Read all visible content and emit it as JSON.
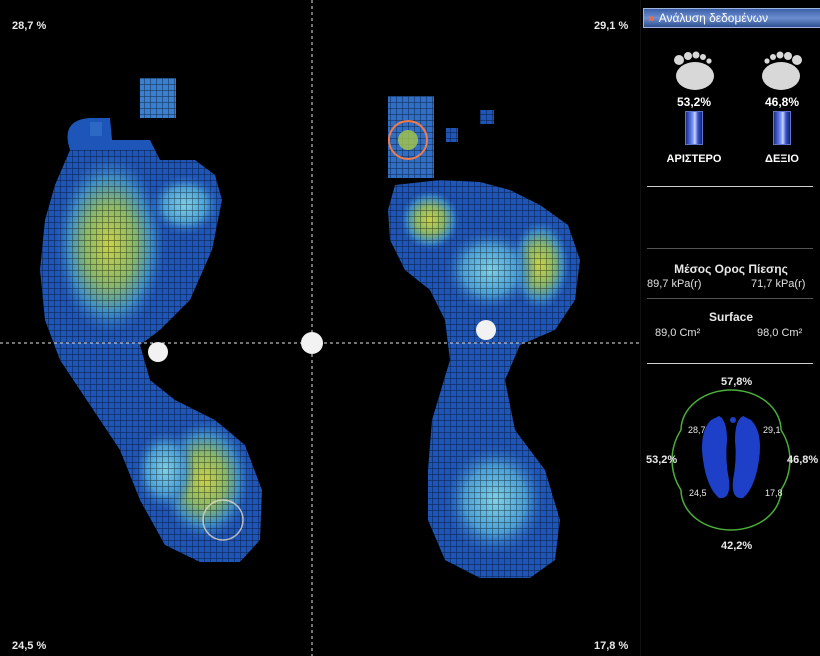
{
  "heatmap": {
    "corners": {
      "top_left": "28,7 %",
      "top_right": "29,1 %",
      "bottom_left": "24,5 %",
      "bottom_right": "17,8 %"
    }
  },
  "panel": {
    "header": "Ανάλυση δεδομένων",
    "left_foot": {
      "percent": "53,2%",
      "label": "ΑΡΙΣΤΕΡΟ"
    },
    "right_foot": {
      "percent": "46,8%",
      "label": "ΔΕΞΙΟ"
    },
    "mean_pressure": {
      "title": "Μέσος Ορος Πίεσης",
      "left": "89,7 kPa(r)",
      "right": "71,7 kPa(r)"
    },
    "surface": {
      "title": "Surface",
      "left": "89,0 Cm²",
      "right": "98,0 Cm²"
    },
    "summary": {
      "front": "57,8%",
      "back": "42,2%",
      "left": "53,2%",
      "right": "46,8%",
      "q_top_left": "28,7",
      "q_top_right": "29,1",
      "q_bottom_left": "24,5",
      "q_bottom_right": "17,8"
    }
  },
  "colors": {
    "header": "#4a6fbf",
    "foot_blue": "#1e3fc8",
    "ring": "#4caf3a"
  }
}
